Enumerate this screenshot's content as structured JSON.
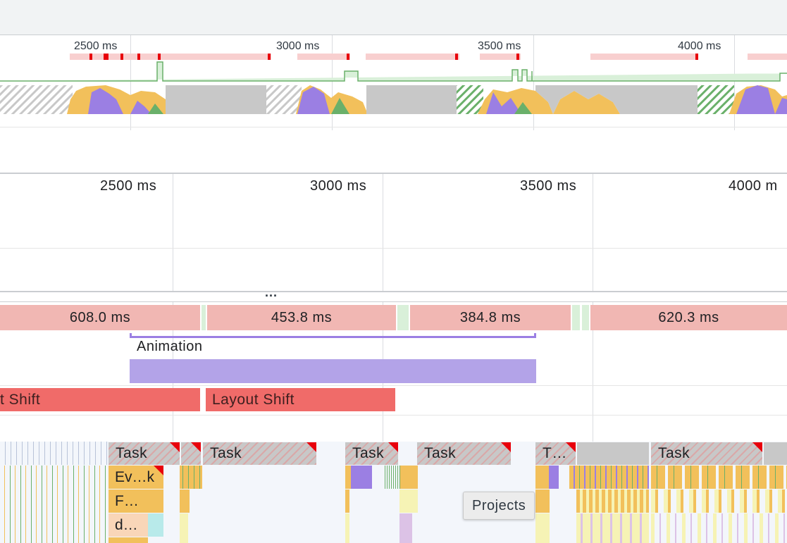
{
  "overview": {
    "time_labels": [
      "2500 ms",
      "3000 ms",
      "3500 ms",
      "4000 ms"
    ]
  },
  "ruler": {
    "time_labels": [
      "2500 ms",
      "3000 ms",
      "3500 ms",
      "4000 m"
    ]
  },
  "collapse_handle": "...",
  "frames": [
    "608.0 ms",
    "453.8 ms",
    "384.8 ms",
    "620.3 ms"
  ],
  "animation": {
    "label": "Animation"
  },
  "layout_shifts": [
    "t Shift",
    "Layout Shift"
  ],
  "main_thread": {
    "tasks": [
      "Task",
      "Task",
      "Task",
      "Task",
      "T…",
      "Task"
    ],
    "sub_labels": [
      "Ev…k",
      "F…",
      "d…"
    ]
  },
  "tooltip": "Projects",
  "colors": {
    "fps_bar": "#f8cfcf",
    "fps_mark": "#e8000b",
    "frame_dropped": "#f1b7b3",
    "frame_ok": "#d9f0d9",
    "animation": "#b3a3e8",
    "layout_shift": "#f06b69",
    "scripting": "#f2c05b",
    "rendering": "#9b7fe3",
    "painting": "#6ab06a",
    "idle": "#c8c8c8"
  }
}
